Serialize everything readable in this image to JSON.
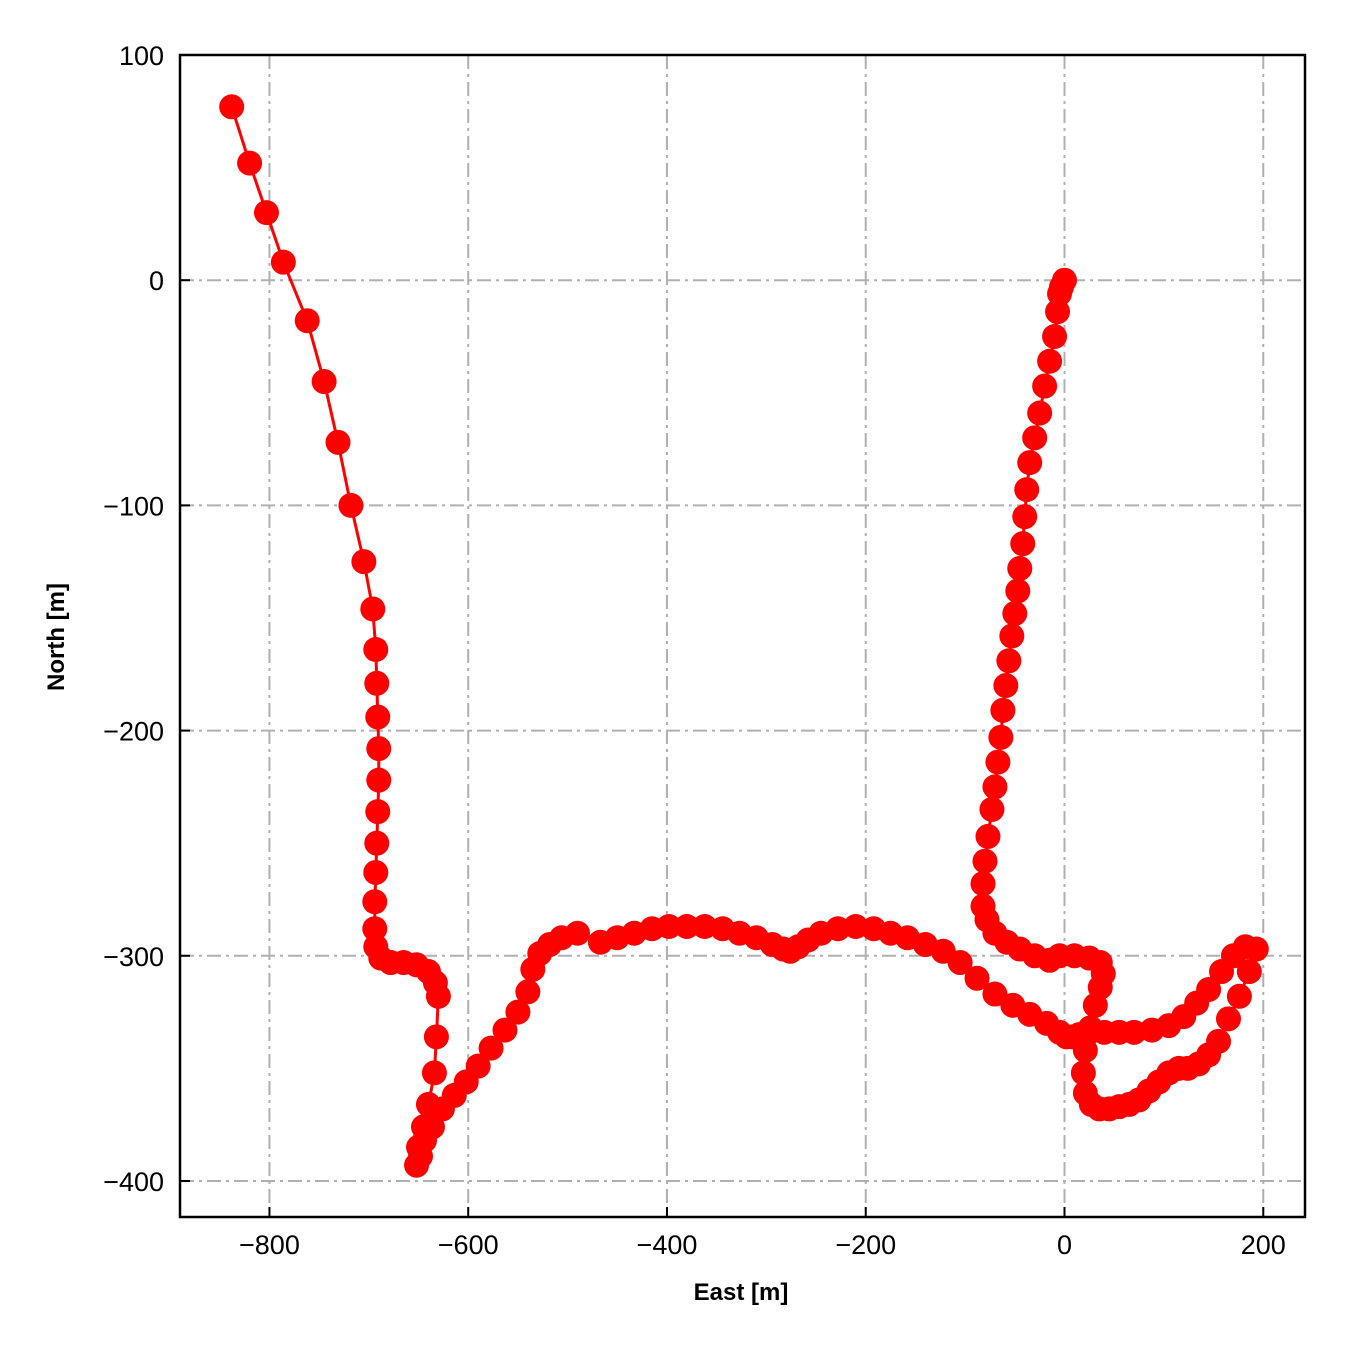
{
  "chart_data": {
    "type": "line",
    "title": "",
    "xlabel": "East [m]",
    "ylabel": "North [m]",
    "xlim": [
      -890,
      242
    ],
    "ylim": [
      -416,
      100
    ],
    "xticks": [
      -800,
      -600,
      -400,
      -200,
      0,
      200
    ],
    "yticks": [
      100,
      0,
      -100,
      -200,
      -300,
      -400
    ],
    "grid": true,
    "grid_style": "dash-dot",
    "colors": {
      "series": "#ff0000",
      "grid": "#b0b0b0",
      "axes": "#000000"
    },
    "series": [
      {
        "marker": "circle",
        "points": [
          [
            -838,
            77
          ],
          [
            -820,
            52
          ],
          [
            -803,
            30
          ],
          [
            -786,
            8
          ],
          [
            -762,
            -18
          ],
          [
            -745,
            -45
          ],
          [
            -731,
            -72
          ],
          [
            -718,
            -100
          ],
          [
            -705,
            -125
          ],
          [
            -696,
            -146
          ],
          [
            -693,
            -164
          ],
          [
            -692,
            -179
          ],
          [
            -691,
            -194
          ],
          [
            -690,
            -208
          ],
          [
            -690,
            -222
          ],
          [
            -691,
            -236
          ],
          [
            -692,
            -250
          ],
          [
            -693,
            -263
          ],
          [
            -694,
            -276
          ],
          [
            -694,
            -288
          ],
          [
            -693,
            -296
          ],
          [
            -688,
            -301
          ],
          [
            -678,
            -303
          ],
          [
            -665,
            -303
          ],
          [
            -652,
            -304
          ],
          [
            -640,
            -307
          ],
          [
            -633,
            -312
          ],
          [
            -630,
            -318
          ],
          [
            -632,
            -336
          ],
          [
            -634,
            -352
          ],
          [
            -640,
            -366
          ],
          [
            -645,
            -376
          ],
          [
            -650,
            -385
          ],
          [
            -652,
            -393
          ],
          [
            -648,
            -389
          ],
          [
            -644,
            -382
          ],
          [
            -636,
            -376
          ],
          [
            -626,
            -368
          ],
          [
            -614,
            -362
          ],
          [
            -602,
            -356
          ],
          [
            -590,
            -349
          ],
          [
            -577,
            -341
          ],
          [
            -563,
            -333
          ],
          [
            -550,
            -325
          ],
          [
            -540,
            -316
          ],
          [
            -535,
            -306
          ],
          [
            -528,
            -299
          ],
          [
            -518,
            -295
          ],
          [
            -506,
            -292
          ],
          [
            -490,
            -290
          ],
          [
            -467,
            -294
          ],
          [
            -450,
            -292
          ],
          [
            -433,
            -290
          ],
          [
            -415,
            -288
          ],
          [
            -398,
            -287
          ],
          [
            -380,
            -287
          ],
          [
            -362,
            -287
          ],
          [
            -344,
            -288
          ],
          [
            -327,
            -290
          ],
          [
            -310,
            -292
          ],
          [
            -294,
            -295
          ],
          [
            -283,
            -297
          ],
          [
            -276,
            -298
          ],
          [
            -268,
            -296
          ],
          [
            -258,
            -293
          ],
          [
            -245,
            -290
          ],
          [
            -228,
            -288
          ],
          [
            -210,
            -287
          ],
          [
            -192,
            -288
          ],
          [
            -175,
            -290
          ],
          [
            -158,
            -292
          ],
          [
            -140,
            -295
          ],
          [
            -122,
            -298
          ],
          [
            -105,
            -303
          ],
          [
            -88,
            -310
          ],
          [
            -70,
            -317
          ],
          [
            -52,
            -322
          ],
          [
            -35,
            -326
          ],
          [
            -18,
            -330
          ],
          [
            -5,
            -334
          ],
          [
            2,
            -336
          ],
          [
            8,
            -336
          ],
          [
            15,
            -335
          ],
          [
            25,
            -334
          ],
          [
            40,
            -334
          ],
          [
            55,
            -334
          ],
          [
            70,
            -334
          ],
          [
            88,
            -333
          ],
          [
            105,
            -331
          ],
          [
            120,
            -327
          ],
          [
            133,
            -321
          ],
          [
            145,
            -315
          ],
          [
            158,
            -307
          ],
          [
            170,
            -300
          ],
          [
            182,
            -296
          ],
          [
            193,
            -297
          ],
          [
            186,
            -307
          ],
          [
            176,
            -318
          ],
          [
            165,
            -328
          ],
          [
            155,
            -338
          ],
          [
            145,
            -344
          ],
          [
            135,
            -348
          ],
          [
            124,
            -350
          ],
          [
            115,
            -350
          ],
          [
            105,
            -352
          ],
          [
            95,
            -356
          ],
          [
            85,
            -360
          ],
          [
            75,
            -364
          ],
          [
            65,
            -366
          ],
          [
            55,
            -367
          ],
          [
            45,
            -368
          ],
          [
            35,
            -368
          ],
          [
            27,
            -366
          ],
          [
            21,
            -361
          ],
          [
            19,
            -352
          ],
          [
            21,
            -342
          ],
          [
            26,
            -332
          ],
          [
            31,
            -322
          ],
          [
            36,
            -314
          ],
          [
            39,
            -308
          ],
          [
            36,
            -303
          ],
          [
            25,
            -301
          ],
          [
            10,
            -300
          ],
          [
            -5,
            -300
          ],
          [
            -15,
            -302
          ],
          [
            -30,
            -300
          ],
          [
            -45,
            -297
          ],
          [
            -58,
            -294
          ],
          [
            -70,
            -290
          ],
          [
            -78,
            -284
          ],
          [
            -82,
            -278
          ],
          [
            -82,
            -268
          ],
          [
            -80,
            -258
          ],
          [
            -77,
            -247
          ],
          [
            -73,
            -235
          ],
          [
            -70,
            -225
          ],
          [
            -67,
            -214
          ],
          [
            -64,
            -203
          ],
          [
            -62,
            -191
          ],
          [
            -59,
            -180
          ],
          [
            -56,
            -169
          ],
          [
            -53,
            -158
          ],
          [
            -50,
            -148
          ],
          [
            -47,
            -138
          ],
          [
            -45,
            -128
          ],
          [
            -42,
            -117
          ],
          [
            -40,
            -105
          ],
          [
            -38,
            -93
          ],
          [
            -35,
            -81
          ],
          [
            -30,
            -70
          ],
          [
            -25,
            -59
          ],
          [
            -20,
            -47
          ],
          [
            -15,
            -36
          ],
          [
            -10,
            -25
          ],
          [
            -7,
            -14
          ],
          [
            -5,
            -6
          ],
          [
            -3,
            -3
          ],
          [
            0,
            0
          ]
        ]
      }
    ]
  }
}
